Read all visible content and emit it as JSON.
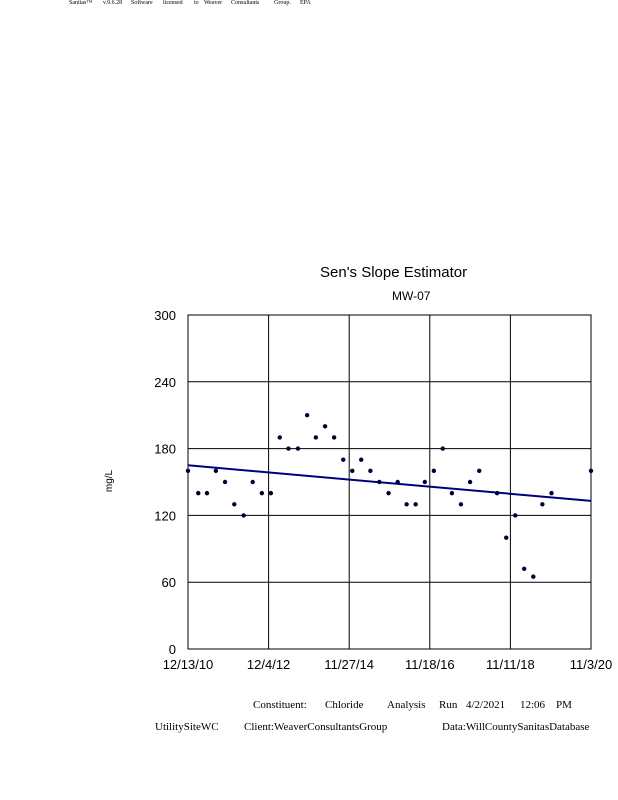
{
  "license_words": [
    "Sanitas™",
    "v.9.6.28",
    "Software",
    "licensed",
    "to",
    "Weaver",
    "Consultants",
    "Group.",
    "EPA"
  ],
  "footer": {
    "line1": [
      "Constituent:",
      "Chloride",
      "Analysis",
      "Run",
      "4/2/2021",
      "12:06",
      "PM"
    ],
    "line2": [
      "UtilitySiteWC",
      "Client:WeaverConsultantsGroup",
      "Data:WillCountySanitasDatabase"
    ]
  },
  "colors": {
    "trend": "#00007f",
    "points": "#000033",
    "grid": "#000000"
  },
  "chart_data": {
    "type": "scatter",
    "title": "Sen's Slope Estimator",
    "subtitle": "MW-07",
    "ylabel": "mg/L",
    "xlabel": "",
    "xlim": [
      "2010-12-13",
      "2020-11-03"
    ],
    "ylim": [
      0,
      300
    ],
    "x_ticks": [
      "12/13/10",
      "12/4/12",
      "11/27/14",
      "11/18/16",
      "11/11/18",
      "11/3/20"
    ],
    "y_ticks": [
      0,
      60,
      120,
      180,
      240,
      300
    ],
    "grid": true,
    "series": [
      {
        "points": [
          [
            "2010-12-13",
            160
          ],
          [
            "2011-03-15",
            140
          ],
          [
            "2011-06-01",
            140
          ],
          [
            "2011-08-20",
            160
          ],
          [
            "2011-11-10",
            150
          ],
          [
            "2012-02-01",
            130
          ],
          [
            "2012-04-25",
            120
          ],
          [
            "2012-07-15",
            150
          ],
          [
            "2012-10-05",
            140
          ],
          [
            "2012-12-25",
            140
          ],
          [
            "2013-03-15",
            190
          ],
          [
            "2013-06-01",
            180
          ],
          [
            "2013-08-25",
            180
          ],
          [
            "2013-11-15",
            210
          ],
          [
            "2014-02-01",
            190
          ],
          [
            "2014-04-25",
            200
          ],
          [
            "2014-07-15",
            190
          ],
          [
            "2014-10-05",
            170
          ],
          [
            "2014-12-25",
            160
          ],
          [
            "2015-03-15",
            170
          ],
          [
            "2015-06-05",
            160
          ],
          [
            "2015-08-25",
            150
          ],
          [
            "2015-11-15",
            140
          ],
          [
            "2016-02-05",
            150
          ],
          [
            "2016-04-25",
            130
          ],
          [
            "2016-07-15",
            130
          ],
          [
            "2016-10-05",
            150
          ],
          [
            "2016-12-25",
            160
          ],
          [
            "2017-03-15",
            180
          ],
          [
            "2017-06-05",
            140
          ],
          [
            "2017-08-25",
            130
          ],
          [
            "2017-11-15",
            150
          ],
          [
            "2018-02-05",
            160
          ],
          [
            "2018-07-15",
            140
          ],
          [
            "2018-10-05",
            100
          ],
          [
            "2018-12-25",
            120
          ],
          [
            "2019-03-15",
            72
          ],
          [
            "2019-06-05",
            65
          ],
          [
            "2019-08-25",
            130
          ],
          [
            "2019-11-15",
            140
          ],
          [
            "2020-11-03",
            160
          ]
        ]
      }
    ],
    "trend_line": {
      "x": [
        "2010-12-13",
        "2020-11-03"
      ],
      "y": [
        165,
        133
      ]
    }
  }
}
